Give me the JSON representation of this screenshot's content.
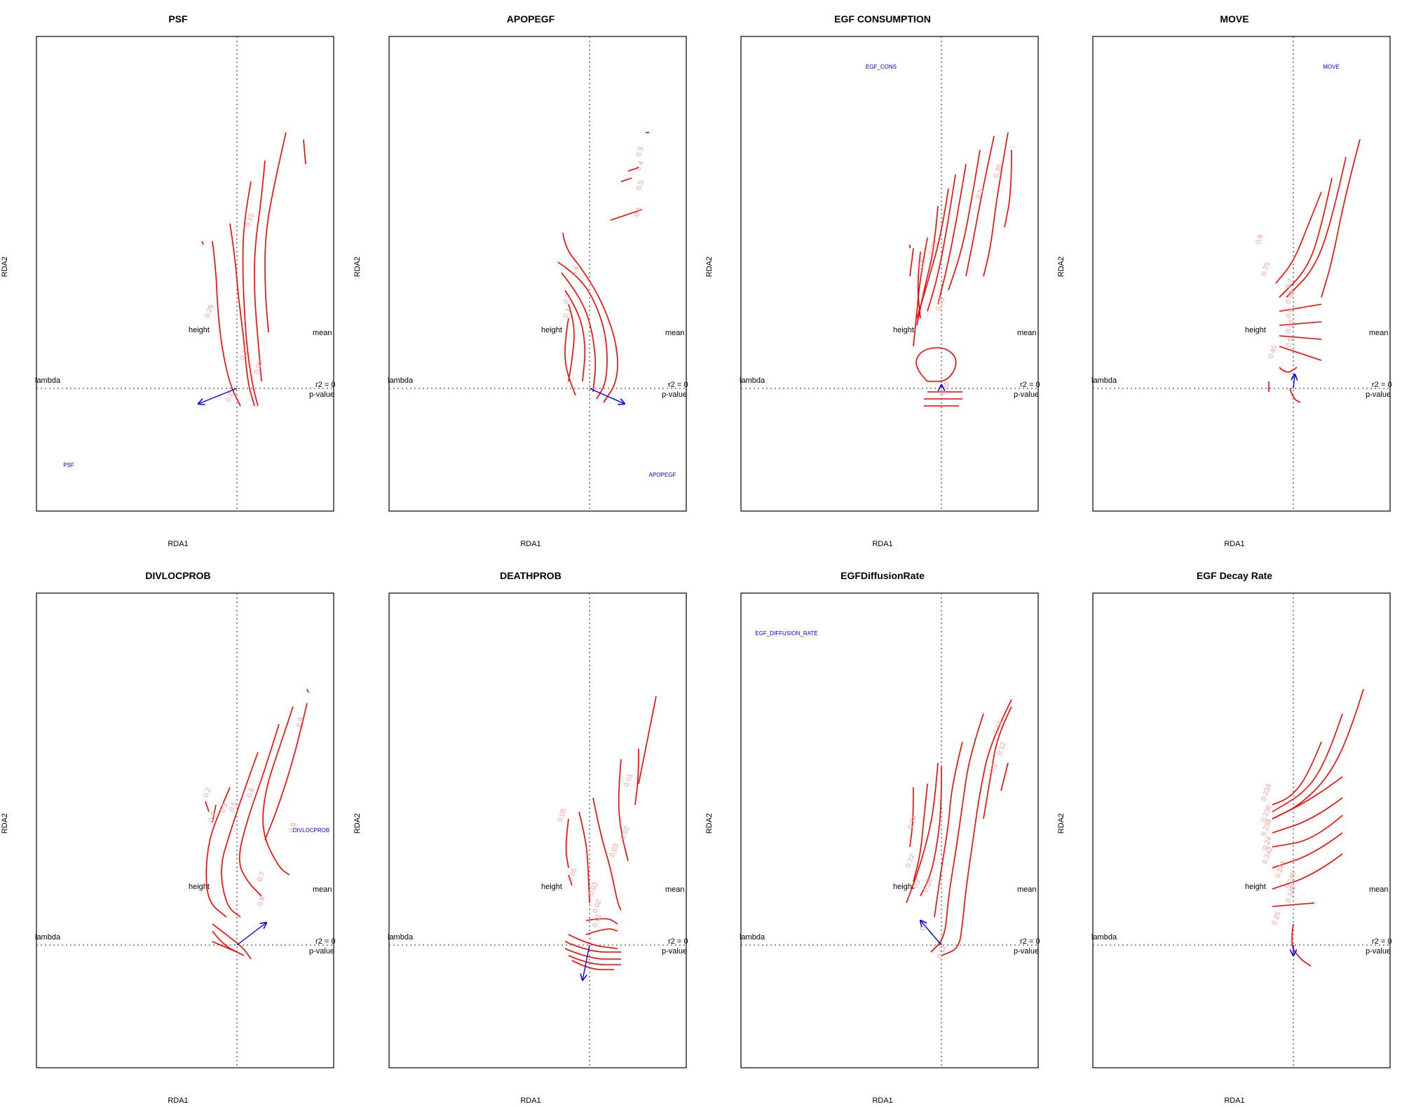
{
  "colors": {
    "contour": "#ff0000",
    "contour_label": "#ff9999",
    "arrow": "#0000ff",
    "env_label": "#0000ff"
  },
  "chart_data": [
    {
      "type": "ordisurf",
      "title": "PSF",
      "xlabel": "RDA1",
      "ylabel": "RDA2",
      "species_labels": [
        "height",
        "mean",
        "lambda",
        "r2 = 0",
        "p-value"
      ],
      "env_label": "PSF",
      "arrow": {
        "dx": -0.55,
        "dy": -0.22
      },
      "contour_levels": [
        "0.25",
        "0.2",
        "0.15",
        "0.1",
        "0.05"
      ]
    },
    {
      "type": "ordisurf",
      "title": "APOPEGF",
      "xlabel": "RDA1",
      "ylabel": "RDA2",
      "species_labels": [
        "height",
        "mean",
        "lambda",
        "r2 = 0",
        "p-value"
      ],
      "env_label": "APOPEGF",
      "arrow": {
        "dx": 0.5,
        "dy": -0.22
      },
      "contour_levels": [
        "0.1",
        "0.2",
        "0.3",
        "0.4",
        "0.5",
        "0.6"
      ]
    },
    {
      "type": "ordisurf",
      "title": "EGF CONSUMPTION",
      "xlabel": "RDA1",
      "ylabel": "RDA2",
      "species_labels": [
        "height",
        "mean",
        "lambda",
        "r2 = 0",
        "p-value"
      ],
      "env_label": "EGF_CONS",
      "arrow": {
        "dx": 0.0,
        "dy": 0.05
      },
      "contour_levels": [
        "0.3",
        "0.35",
        "0.4",
        "0.45",
        "0.5",
        "0.55",
        "0.6",
        "0.65",
        "0.7",
        "0.75",
        "0.8"
      ]
    },
    {
      "type": "ordisurf",
      "title": "MOVE",
      "xlabel": "RDA1",
      "ylabel": "RDA2",
      "species_labels": [
        "height",
        "mean",
        "lambda",
        "r2 = 0",
        "p-value"
      ],
      "env_label": "MOVE",
      "arrow": {
        "dx": 0.02,
        "dy": 0.2
      },
      "contour_levels": [
        "0.45",
        "0.5",
        "0.55",
        "0.6",
        "0.65",
        "0.7",
        "0.75",
        "0.8"
      ]
    },
    {
      "type": "ordisurf",
      "title": "DIVLOCPROB",
      "xlabel": "RDA1",
      "ylabel": "RDA2",
      "species_labels": [
        "height",
        "mean",
        "lambda",
        "r2 = 0",
        "p-value"
      ],
      "env_label": "DIVLOCPROB",
      "arrow": {
        "dx": 0.42,
        "dy": 0.32
      },
      "contour_levels": [
        "0.2",
        "0.3",
        "0.4",
        "0.5",
        "0.6",
        "0.7",
        "0.8",
        "0.9"
      ]
    },
    {
      "type": "ordisurf",
      "title": "DEATHPROB",
      "xlabel": "RDA1",
      "ylabel": "RDA2",
      "species_labels": [
        "height",
        "mean",
        "lambda",
        "r2 = 0",
        "p-value"
      ],
      "env_label": "",
      "arrow": {
        "dx": -0.1,
        "dy": -0.5
      },
      "contour_levels": [
        "0.01",
        "0.02",
        "0.03",
        "0.04",
        "0.05"
      ]
    },
    {
      "type": "ordisurf",
      "title": "EGFDiffusionRate",
      "xlabel": "RDA1",
      "ylabel": "RDA2",
      "species_labels": [
        "height",
        "mean",
        "lambda",
        "r2 = 0",
        "p-value"
      ],
      "env_label": "EGF_DIFFUSION_RATE",
      "arrow": {
        "dx": -0.3,
        "dy": 0.35
      },
      "contour_levels": [
        "0.1",
        "0.12",
        "0.14",
        "0.16",
        "0.18",
        "0.2",
        "0.22",
        "0.24"
      ]
    },
    {
      "type": "ordisurf",
      "title": "EGF Decay Rate",
      "xlabel": "RDA1",
      "ylabel": "RDA2",
      "species_labels": [
        "height",
        "mean",
        "lambda",
        "r2 = 0",
        "p-value"
      ],
      "env_label": "",
      "arrow": {
        "dx": 0.0,
        "dy": -0.15
      },
      "contour_levels": [
        "0.234",
        "0.236",
        "0.238",
        "0.24",
        "0.242",
        "0.244",
        "0.246",
        "0.248",
        "0.25"
      ]
    }
  ]
}
